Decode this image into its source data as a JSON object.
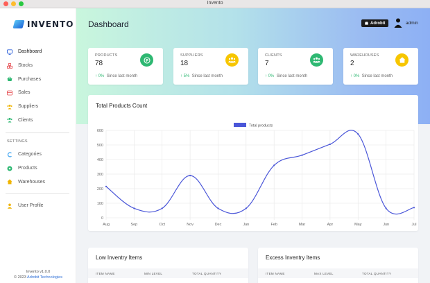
{
  "window": {
    "title": "Invento"
  },
  "brand": {
    "name": "INVENTO"
  },
  "sidebar": {
    "items": [
      {
        "label": "Dashboard",
        "icon": "monitor-icon",
        "color": "#2b5fd9"
      },
      {
        "label": "Stocks",
        "icon": "boxes-icon",
        "color": "#e5484d"
      },
      {
        "label": "Purchases",
        "icon": "basket-icon",
        "color": "#2eb872"
      },
      {
        "label": "Sales",
        "icon": "sales-icon",
        "color": "#e5484d"
      },
      {
        "label": "Suppliers",
        "icon": "users-icon",
        "color": "#f0b400"
      },
      {
        "label": "Clients",
        "icon": "clients-icon",
        "color": "#2eb872"
      }
    ],
    "settings_label": "SETTINGS",
    "settings_items": [
      {
        "label": "Categories",
        "icon": "c-icon",
        "color": "#3ea4f0"
      },
      {
        "label": "Products",
        "icon": "product-icon",
        "color": "#2eb872"
      },
      {
        "label": "Warehouses",
        "icon": "home-icon",
        "color": "#f0b400"
      }
    ],
    "profile_item": {
      "label": "User Profile",
      "icon": "user-icon",
      "color": "#f0b400"
    },
    "version": "Invento v1.0.0",
    "copyright_prefix": "© 2023 ",
    "company": "Adrobit Technologies"
  },
  "header": {
    "title": "Dashboard",
    "badge": "Adrobit",
    "user": "admin"
  },
  "stats": [
    {
      "label": "PRODUCTS",
      "value": "78",
      "pct": "0%",
      "since": "Since last month",
      "icon": "product-icon",
      "color": "#2eb872"
    },
    {
      "label": "SUPPLIERS",
      "value": "18",
      "pct": "5%",
      "since": "Since last month",
      "icon": "users-icon",
      "color": "#f7c600"
    },
    {
      "label": "CLIENTS",
      "value": "7",
      "pct": "0%",
      "since": "Since last month",
      "icon": "clients-icon",
      "color": "#2eb872"
    },
    {
      "label": "WAREHOUSES",
      "value": "2",
      "pct": "0%",
      "since": "Since last month",
      "icon": "home-icon",
      "color": "#f7c600"
    }
  ],
  "chart_card": {
    "title": "Total Products Count"
  },
  "chart_data": {
    "type": "line",
    "title": "",
    "categories": [
      "Aug",
      "Sep",
      "Oct",
      "Nov",
      "Dec",
      "Jan",
      "Feb",
      "Mar",
      "Apr",
      "May",
      "Jun",
      "Jul"
    ],
    "series": [
      {
        "name": "Total products",
        "values": [
          215,
          65,
          65,
          290,
          65,
          65,
          360,
          430,
          505,
          575,
          65,
          70
        ]
      }
    ],
    "ylim": [
      0,
      600
    ],
    "yticks": [
      0,
      100,
      200,
      300,
      400,
      500,
      600
    ],
    "grid": true,
    "legend": "top-center",
    "color": "#4a56d8"
  },
  "tables": [
    {
      "title": "Low Inventry Items",
      "headers": [
        "ITEM NAME",
        "MIN LEVEL",
        "TOTAL QUANTITY"
      ]
    },
    {
      "title": "Excess Inventry Items",
      "headers": [
        "ITEM NAME",
        "MAX LEVEL",
        "TOTAL QUANTITY"
      ]
    }
  ]
}
